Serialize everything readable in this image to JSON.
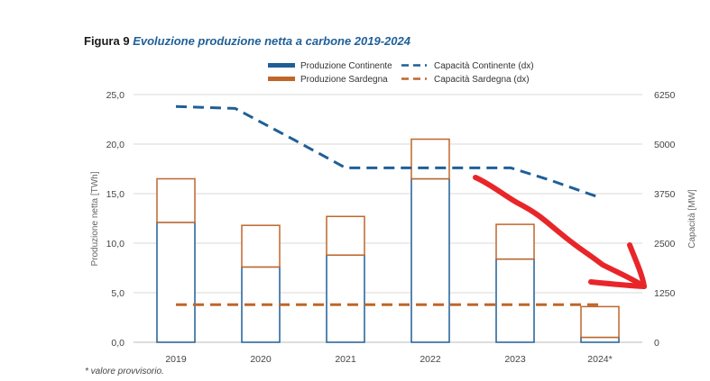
{
  "figure": {
    "label": "Figura 9",
    "subtitle": "Evoluzione produzione netta a carbone 2019-2024",
    "footnote": "* valore provvisorio."
  },
  "chart_data": {
    "type": "bar",
    "categories": [
      "2019",
      "2020",
      "2021",
      "2022",
      "2023",
      "2024*"
    ],
    "series": [
      {
        "name": "Produzione Continente",
        "kind": "bar",
        "axis": "left",
        "values": [
          12.1,
          7.6,
          8.8,
          16.5,
          8.4,
          0.5
        ]
      },
      {
        "name": "Produzione Sardegna",
        "kind": "bar",
        "axis": "left",
        "values": [
          4.4,
          4.2,
          3.9,
          4.0,
          3.5,
          3.1
        ]
      },
      {
        "name": "Capacità Continente (dx)",
        "kind": "line",
        "axis": "right",
        "x": [
          2019,
          2019.7,
          2020.4,
          2021,
          2021.9,
          2022.4,
          2022.95,
          2023.4,
          2024
        ],
        "values": [
          5950,
          5900,
          5100,
          4400,
          4400,
          4400,
          4400,
          4100,
          3650
        ]
      },
      {
        "name": "Capacità Sardegna (dx)",
        "kind": "line",
        "axis": "right",
        "x": [
          2019,
          2024
        ],
        "values": [
          950,
          950
        ]
      }
    ],
    "ylabel": "Produzione netta [TWh]",
    "y2label": "Capacità [MW]",
    "ylim": [
      0,
      25
    ],
    "y2lim": [
      0,
      6250
    ],
    "yticks": [
      "0,0",
      "5,0",
      "10,0",
      "15,0",
      "20,0",
      "25,0"
    ],
    "y2ticks": [
      "0",
      "1250",
      "2500",
      "3750",
      "5000",
      "6250"
    ],
    "grid": true,
    "legend_position": "top",
    "colors": {
      "continente": "#1f5f97",
      "sardegna": "#c0662a",
      "grid": "#d9d9d9",
      "annotation": "#e8262a"
    }
  }
}
